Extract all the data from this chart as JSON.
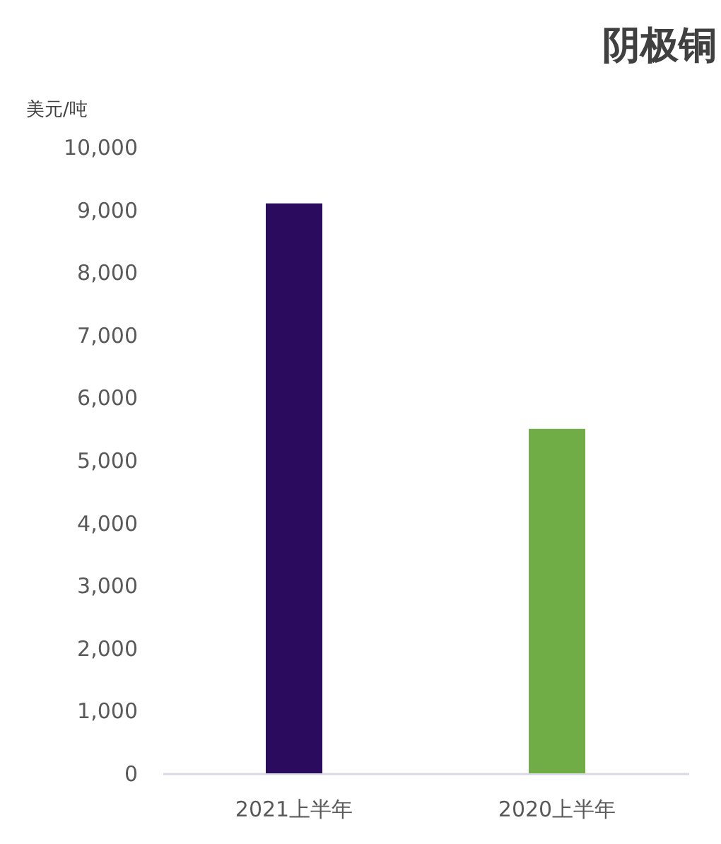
{
  "chart_data": {
    "type": "bar",
    "title": "阴极铜",
    "ylabel": "美元/吨",
    "categories": [
      "2021上半年",
      "2020上半年"
    ],
    "values": [
      9100,
      5500
    ],
    "colors": [
      "#2b0b5e",
      "#70ad47"
    ],
    "ylim": [
      0,
      10000
    ],
    "yticks": [
      0,
      {
        "value": 1000,
        "label": "1,000"
      },
      {
        "value": 2000,
        "label": "2,000"
      },
      {
        "value": 3000,
        "label": "3,000"
      },
      {
        "value": 4000,
        "label": "4,000"
      },
      {
        "value": 5000,
        "label": "5,000"
      },
      {
        "value": 6000,
        "label": "6,000"
      },
      {
        "value": 7000,
        "label": "7,000"
      },
      {
        "value": 8000,
        "label": "8,000"
      },
      {
        "value": 9000,
        "label": "9,000"
      },
      {
        "value": 10000,
        "label": "10,000"
      }
    ]
  }
}
